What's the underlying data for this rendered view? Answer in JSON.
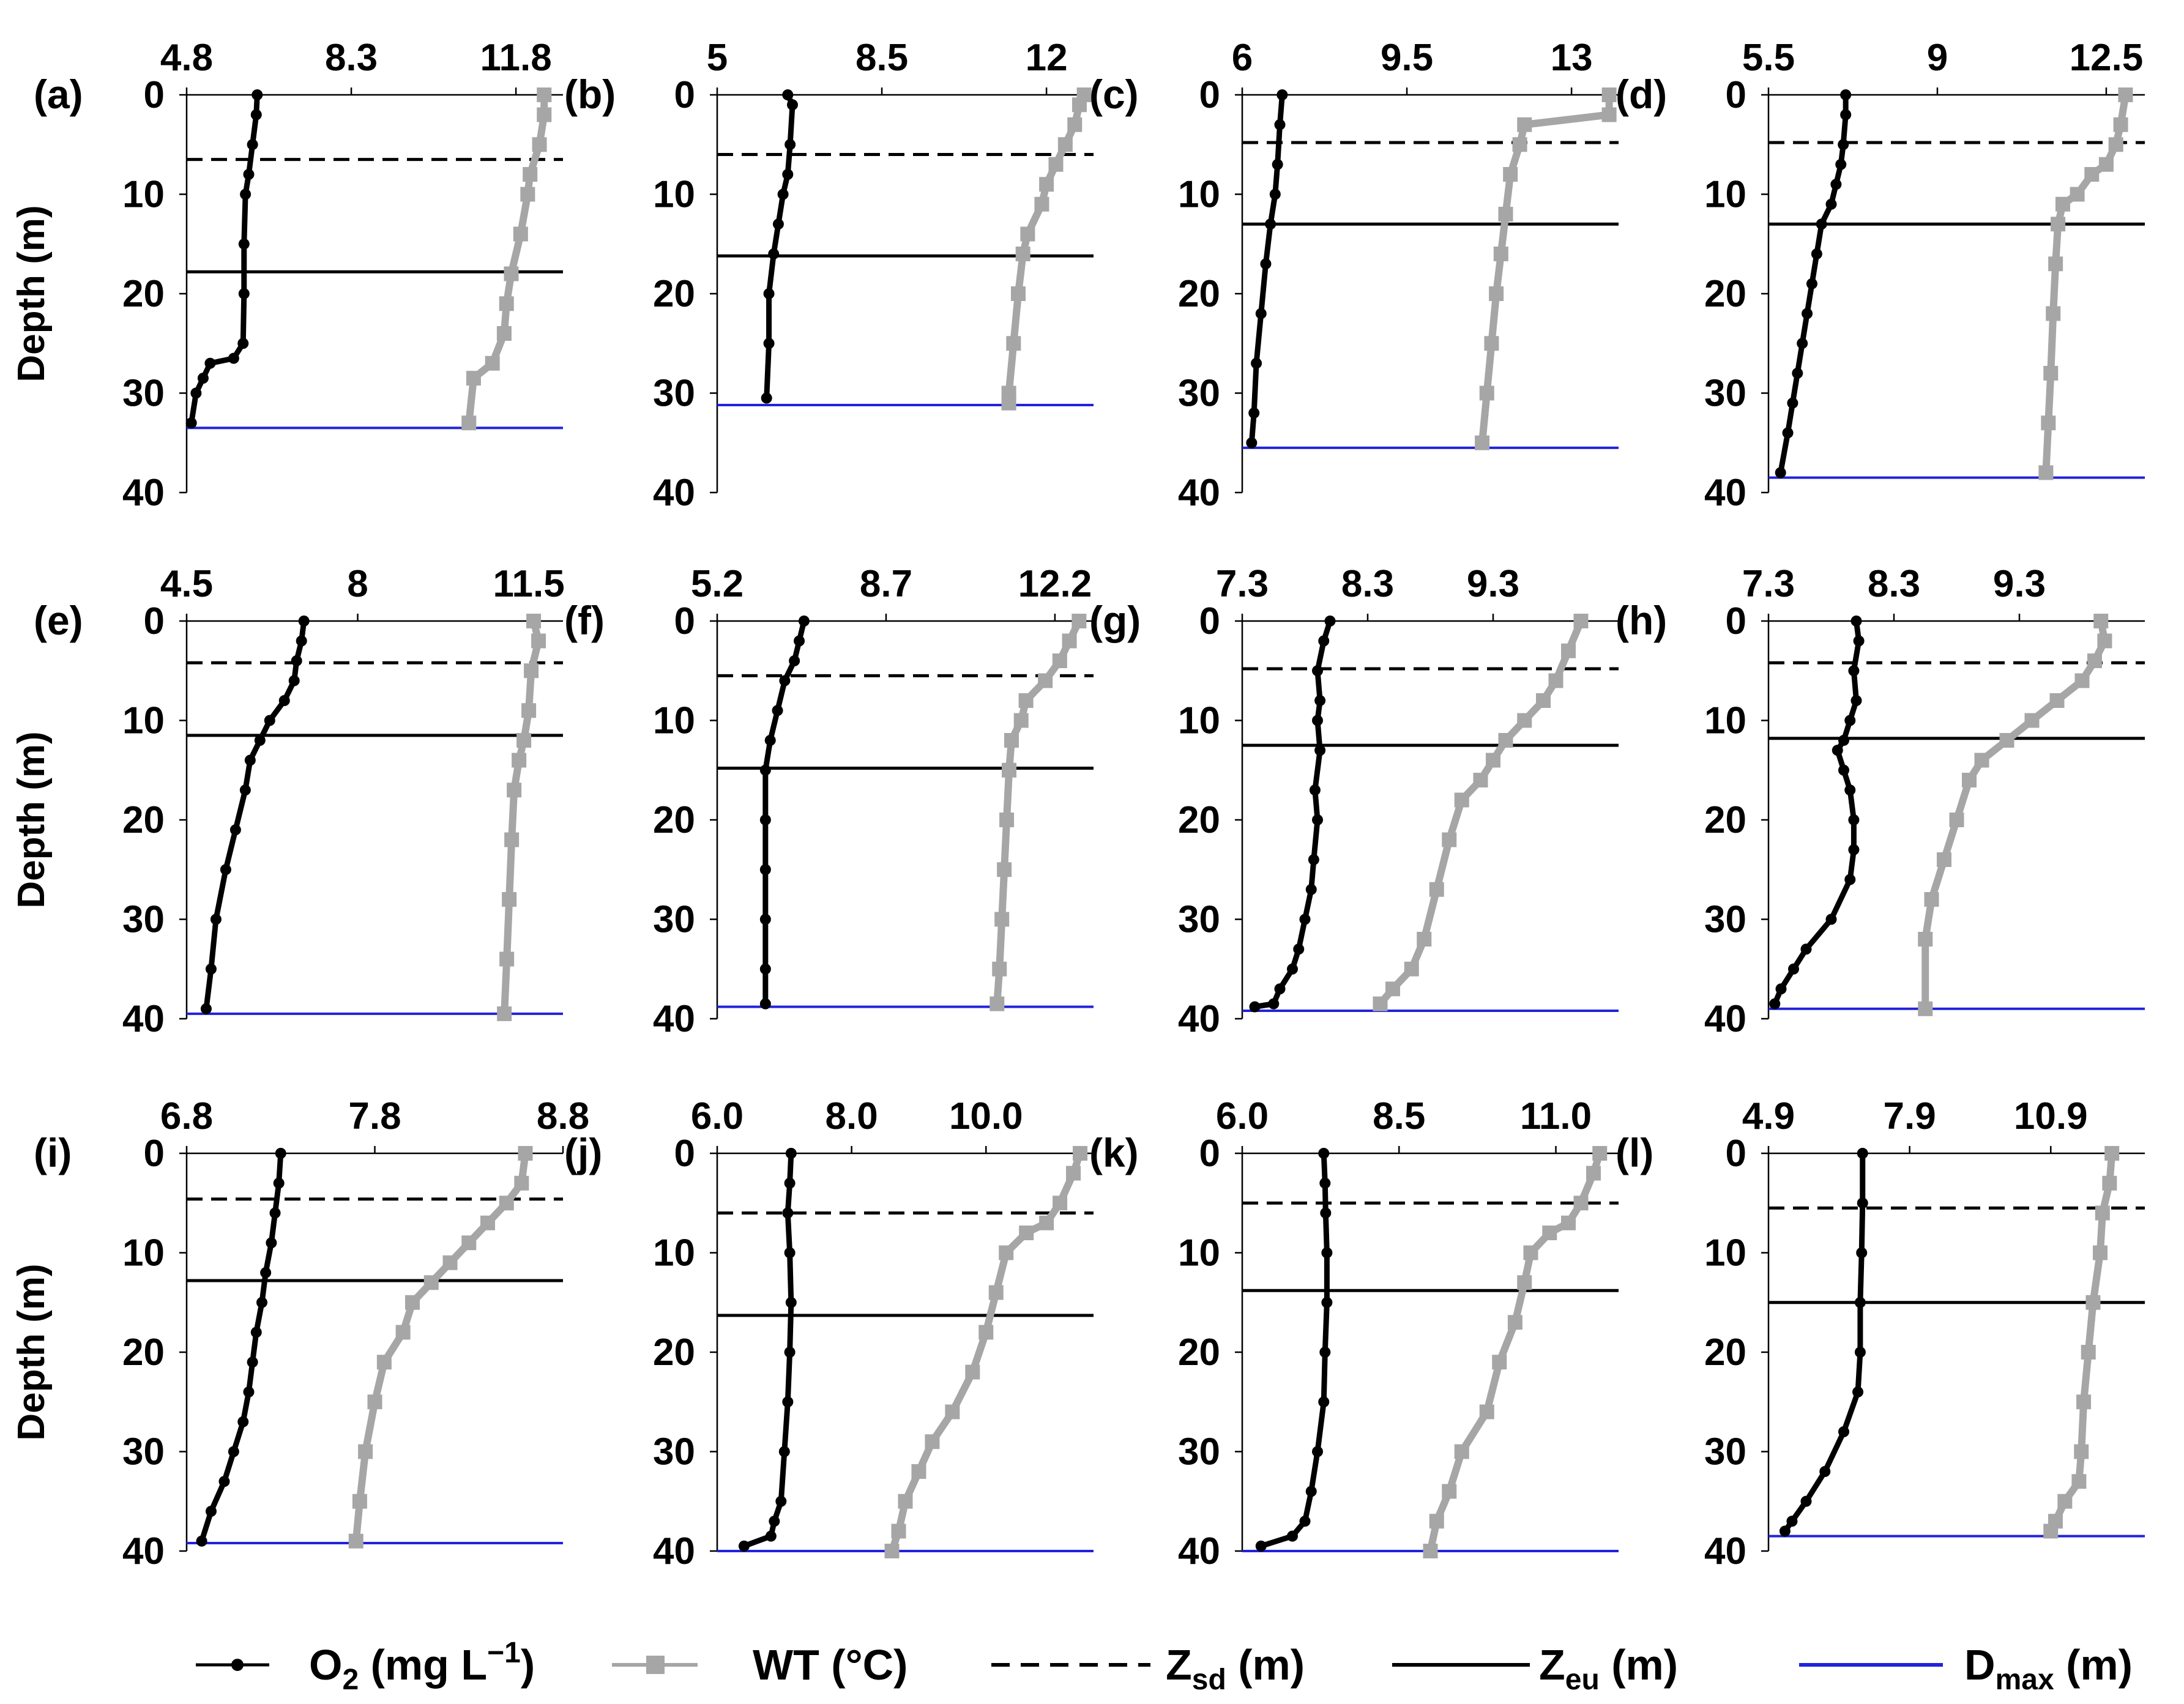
{
  "legend": {
    "o2": {
      "main": "O",
      "sub": "2",
      "rest": " (mg L",
      "sup": "−1",
      "end": ")"
    },
    "wt": {
      "label": "WT (°C)"
    },
    "zsd": {
      "main": "Z",
      "sub": "sd",
      "rest": " (m)"
    },
    "zeu": {
      "main": "Z",
      "sub": "eu",
      "rest": " (m)"
    },
    "dmax": {
      "main": "D",
      "sub": "max",
      "rest": " (m)"
    }
  },
  "colors": {
    "o2": "#000000",
    "wt": "#a6a6a6",
    "zsd": "#000000",
    "zeu": "#000000",
    "dmax": "#2222dd"
  },
  "y_axis": {
    "label": "Depth (m)",
    "ticks": [
      0,
      10,
      20,
      30,
      40
    ],
    "range": [
      0,
      40
    ]
  },
  "chart_data": [
    {
      "type": "line",
      "panel": "(a)",
      "xticks": [
        "4.8",
        "8.3",
        "11.8"
      ],
      "xlim": [
        4.8,
        12.8
      ],
      "zsd": 6.5,
      "zeu": 17.8,
      "dmax": 33.5,
      "o2": [
        [
          6.3,
          0
        ],
        [
          6.28,
          2
        ],
        [
          6.2,
          5
        ],
        [
          6.12,
          8
        ],
        [
          6.05,
          10
        ],
        [
          6.02,
          15
        ],
        [
          6.02,
          20
        ],
        [
          6.0,
          25
        ],
        [
          5.8,
          26.5
        ],
        [
          5.3,
          27
        ],
        [
          5.15,
          28.5
        ],
        [
          5.0,
          30
        ],
        [
          4.9,
          33
        ]
      ],
      "wt": [
        [
          12.4,
          0
        ],
        [
          12.4,
          2
        ],
        [
          12.3,
          5
        ],
        [
          12.1,
          8
        ],
        [
          12.05,
          10
        ],
        [
          11.9,
          14
        ],
        [
          11.7,
          18
        ],
        [
          11.6,
          21
        ],
        [
          11.55,
          24
        ],
        [
          11.3,
          27
        ],
        [
          10.9,
          28.5
        ],
        [
          10.8,
          33
        ]
      ]
    },
    {
      "type": "line",
      "panel": "(b)",
      "xticks": [
        "5",
        "8.5",
        "12"
      ],
      "xlim": [
        5,
        13
      ],
      "zsd": 6.0,
      "zeu": 16.2,
      "dmax": 31.2,
      "o2": [
        [
          6.5,
          0
        ],
        [
          6.6,
          1
        ],
        [
          6.55,
          5
        ],
        [
          6.5,
          8
        ],
        [
          6.4,
          10
        ],
        [
          6.3,
          13
        ],
        [
          6.2,
          16
        ],
        [
          6.1,
          20
        ],
        [
          6.1,
          25
        ],
        [
          6.05,
          30.5
        ]
      ],
      "wt": [
        [
          12.8,
          0
        ],
        [
          12.7,
          1
        ],
        [
          12.6,
          3
        ],
        [
          12.4,
          5
        ],
        [
          12.2,
          7
        ],
        [
          12.0,
          9
        ],
        [
          11.9,
          11
        ],
        [
          11.6,
          14
        ],
        [
          11.5,
          16
        ],
        [
          11.4,
          20
        ],
        [
          11.3,
          25
        ],
        [
          11.2,
          30
        ],
        [
          11.2,
          31
        ]
      ]
    },
    {
      "type": "line",
      "panel": "(c)",
      "xticks": [
        "6",
        "9.5",
        "13"
      ],
      "xlim": [
        6,
        14
      ],
      "zsd": 4.8,
      "zeu": 13.0,
      "dmax": 35.5,
      "o2": [
        [
          6.85,
          0
        ],
        [
          6.8,
          3
        ],
        [
          6.75,
          7
        ],
        [
          6.7,
          10
        ],
        [
          6.6,
          13
        ],
        [
          6.5,
          17
        ],
        [
          6.4,
          22
        ],
        [
          6.3,
          27
        ],
        [
          6.25,
          32
        ],
        [
          6.2,
          35
        ]
      ],
      "wt": [
        [
          13.8,
          0
        ],
        [
          13.8,
          2
        ],
        [
          12.0,
          3
        ],
        [
          11.9,
          5
        ],
        [
          11.7,
          8
        ],
        [
          11.6,
          12
        ],
        [
          11.5,
          16
        ],
        [
          11.4,
          20
        ],
        [
          11.3,
          25
        ],
        [
          11.2,
          30
        ],
        [
          11.1,
          35
        ]
      ]
    },
    {
      "type": "line",
      "panel": "(d)",
      "xticks": [
        "5.5",
        "9",
        "12.5"
      ],
      "xlim": [
        5.5,
        13.3
      ],
      "zsd": 4.8,
      "zeu": 13.0,
      "dmax": 38.5,
      "o2": [
        [
          7.1,
          0
        ],
        [
          7.1,
          2
        ],
        [
          7.05,
          5
        ],
        [
          7.0,
          7
        ],
        [
          6.9,
          9
        ],
        [
          6.8,
          11
        ],
        [
          6.6,
          13
        ],
        [
          6.5,
          16
        ],
        [
          6.4,
          19
        ],
        [
          6.3,
          22
        ],
        [
          6.2,
          25
        ],
        [
          6.1,
          28
        ],
        [
          6.0,
          31
        ],
        [
          5.9,
          34
        ],
        [
          5.75,
          38
        ]
      ],
      "wt": [
        [
          12.9,
          0
        ],
        [
          12.8,
          3
        ],
        [
          12.7,
          5
        ],
        [
          12.5,
          7
        ],
        [
          12.2,
          8
        ],
        [
          11.9,
          10
        ],
        [
          11.6,
          11
        ],
        [
          11.5,
          13
        ],
        [
          11.45,
          17
        ],
        [
          11.4,
          22
        ],
        [
          11.35,
          28
        ],
        [
          11.3,
          33
        ],
        [
          11.25,
          38
        ]
      ]
    },
    {
      "type": "line",
      "panel": "(e)",
      "xticks": [
        "4.5",
        "8",
        "11.5"
      ],
      "xlim": [
        4.5,
        12.2
      ],
      "zsd": 4.2,
      "zeu": 11.5,
      "dmax": 39.5,
      "o2": [
        [
          6.9,
          0
        ],
        [
          6.85,
          2
        ],
        [
          6.75,
          4
        ],
        [
          6.7,
          6
        ],
        [
          6.5,
          8
        ],
        [
          6.2,
          10
        ],
        [
          6.0,
          12
        ],
        [
          5.8,
          14
        ],
        [
          5.7,
          17
        ],
        [
          5.5,
          21
        ],
        [
          5.3,
          25
        ],
        [
          5.1,
          30
        ],
        [
          5.0,
          35
        ],
        [
          4.9,
          39
        ]
      ],
      "wt": [
        [
          11.6,
          0
        ],
        [
          11.7,
          2
        ],
        [
          11.55,
          5
        ],
        [
          11.5,
          9
        ],
        [
          11.4,
          12
        ],
        [
          11.3,
          14
        ],
        [
          11.2,
          17
        ],
        [
          11.15,
          22
        ],
        [
          11.1,
          28
        ],
        [
          11.05,
          34
        ],
        [
          11.0,
          39.5
        ]
      ]
    },
    {
      "type": "line",
      "panel": "(f)",
      "xticks": [
        "5.2",
        "8.7",
        "12.2"
      ],
      "xlim": [
        5.2,
        13.0
      ],
      "zsd": 5.5,
      "zeu": 14.8,
      "dmax": 38.8,
      "o2": [
        [
          7.0,
          0
        ],
        [
          6.9,
          2
        ],
        [
          6.8,
          4
        ],
        [
          6.6,
          6
        ],
        [
          6.45,
          9
        ],
        [
          6.3,
          12
        ],
        [
          6.2,
          15
        ],
        [
          6.2,
          20
        ],
        [
          6.2,
          25
        ],
        [
          6.2,
          30
        ],
        [
          6.2,
          35
        ],
        [
          6.2,
          38.5
        ]
      ],
      "wt": [
        [
          12.7,
          0
        ],
        [
          12.5,
          2
        ],
        [
          12.3,
          4
        ],
        [
          12.0,
          6
        ],
        [
          11.6,
          8
        ],
        [
          11.5,
          10
        ],
        [
          11.3,
          12
        ],
        [
          11.25,
          15
        ],
        [
          11.2,
          20
        ],
        [
          11.15,
          25
        ],
        [
          11.1,
          30
        ],
        [
          11.05,
          35
        ],
        [
          11.0,
          38.5
        ]
      ]
    },
    {
      "type": "line",
      "panel": "(g)",
      "xticks": [
        "7.3",
        "8.3",
        "9.3"
      ],
      "xlim": [
        7.3,
        10.3
      ],
      "zsd": 4.8,
      "zeu": 12.5,
      "dmax": 39.2,
      "o2": [
        [
          8.0,
          0
        ],
        [
          7.95,
          2
        ],
        [
          7.9,
          5
        ],
        [
          7.92,
          8
        ],
        [
          7.9,
          10
        ],
        [
          7.92,
          13
        ],
        [
          7.88,
          17
        ],
        [
          7.9,
          20
        ],
        [
          7.87,
          24
        ],
        [
          7.85,
          27
        ],
        [
          7.8,
          30
        ],
        [
          7.75,
          33
        ],
        [
          7.7,
          35
        ],
        [
          7.6,
          37
        ],
        [
          7.55,
          38.5
        ],
        [
          7.4,
          38.8
        ]
      ],
      "wt": [
        [
          10.0,
          0
        ],
        [
          9.9,
          3
        ],
        [
          9.8,
          6
        ],
        [
          9.7,
          8
        ],
        [
          9.55,
          10
        ],
        [
          9.4,
          12
        ],
        [
          9.3,
          14
        ],
        [
          9.2,
          16
        ],
        [
          9.05,
          18
        ],
        [
          8.95,
          22
        ],
        [
          8.85,
          27
        ],
        [
          8.75,
          32
        ],
        [
          8.65,
          35
        ],
        [
          8.5,
          37
        ],
        [
          8.4,
          38.5
        ]
      ]
    },
    {
      "type": "line",
      "panel": "(h)",
      "xticks": [
        "7.3",
        "8.3",
        "9.3"
      ],
      "xlim": [
        7.3,
        10.3
      ],
      "zsd": 4.2,
      "zeu": 11.8,
      "dmax": 39.0,
      "o2": [
        [
          8.0,
          0
        ],
        [
          8.02,
          2
        ],
        [
          7.98,
          5
        ],
        [
          8.0,
          8
        ],
        [
          7.95,
          10
        ],
        [
          7.9,
          12
        ],
        [
          7.85,
          13
        ],
        [
          7.9,
          15
        ],
        [
          7.95,
          17
        ],
        [
          7.98,
          20
        ],
        [
          7.98,
          23
        ],
        [
          7.95,
          26
        ],
        [
          7.8,
          30
        ],
        [
          7.6,
          33
        ],
        [
          7.5,
          35
        ],
        [
          7.4,
          37
        ],
        [
          7.35,
          38.5
        ]
      ],
      "wt": [
        [
          9.95,
          0
        ],
        [
          9.98,
          2
        ],
        [
          9.9,
          4
        ],
        [
          9.8,
          6
        ],
        [
          9.6,
          8
        ],
        [
          9.4,
          10
        ],
        [
          9.2,
          12
        ],
        [
          9.0,
          14
        ],
        [
          8.9,
          16
        ],
        [
          8.8,
          20
        ],
        [
          8.7,
          24
        ],
        [
          8.6,
          28
        ],
        [
          8.55,
          32
        ],
        [
          8.55,
          39
        ]
      ]
    },
    {
      "type": "line",
      "panel": "(i)",
      "xticks": [
        "6.8",
        "7.8",
        "8.8"
      ],
      "xlim": [
        6.8,
        8.8
      ],
      "zsd": 4.6,
      "zeu": 12.8,
      "dmax": 39.2,
      "o2": [
        [
          7.3,
          0
        ],
        [
          7.29,
          3
        ],
        [
          7.27,
          6
        ],
        [
          7.25,
          9
        ],
        [
          7.22,
          12
        ],
        [
          7.2,
          15
        ],
        [
          7.17,
          18
        ],
        [
          7.15,
          21
        ],
        [
          7.13,
          24
        ],
        [
          7.1,
          27
        ],
        [
          7.05,
          30
        ],
        [
          7.0,
          33
        ],
        [
          6.93,
          36
        ],
        [
          6.88,
          39
        ]
      ],
      "wt": [
        [
          8.6,
          0
        ],
        [
          8.58,
          3
        ],
        [
          8.5,
          5
        ],
        [
          8.4,
          7
        ],
        [
          8.3,
          9
        ],
        [
          8.2,
          11
        ],
        [
          8.1,
          13
        ],
        [
          8.0,
          15
        ],
        [
          7.95,
          18
        ],
        [
          7.85,
          21
        ],
        [
          7.8,
          25
        ],
        [
          7.75,
          30
        ],
        [
          7.72,
          35
        ],
        [
          7.7,
          39
        ]
      ]
    },
    {
      "type": "line",
      "panel": "(j)",
      "xticks": [
        "6.0",
        "8.0",
        "10.0"
      ],
      "xlim": [
        6.0,
        11.6
      ],
      "zsd": 6.0,
      "zeu": 16.3,
      "dmax": 40.0,
      "o2": [
        [
          7.1,
          0
        ],
        [
          7.08,
          3
        ],
        [
          7.05,
          6
        ],
        [
          7.08,
          10
        ],
        [
          7.1,
          15
        ],
        [
          7.08,
          20
        ],
        [
          7.05,
          25
        ],
        [
          7.0,
          30
        ],
        [
          6.95,
          35
        ],
        [
          6.85,
          37
        ],
        [
          6.8,
          38.5
        ],
        [
          6.4,
          39.5
        ]
      ],
      "wt": [
        [
          11.4,
          0
        ],
        [
          11.3,
          2
        ],
        [
          11.1,
          5
        ],
        [
          10.9,
          7
        ],
        [
          10.6,
          8
        ],
        [
          10.3,
          10
        ],
        [
          10.15,
          14
        ],
        [
          10.0,
          18
        ],
        [
          9.8,
          22
        ],
        [
          9.5,
          26
        ],
        [
          9.2,
          29
        ],
        [
          9.0,
          32
        ],
        [
          8.8,
          35
        ],
        [
          8.7,
          38
        ],
        [
          8.6,
          40
        ]
      ]
    },
    {
      "type": "line",
      "panel": "(k)",
      "xticks": [
        "6.0",
        "8.5",
        "11.0"
      ],
      "xlim": [
        6.0,
        12.0
      ],
      "zsd": 5.0,
      "zeu": 13.8,
      "dmax": 40.0,
      "o2": [
        [
          7.3,
          0
        ],
        [
          7.32,
          3
        ],
        [
          7.33,
          6
        ],
        [
          7.35,
          10
        ],
        [
          7.35,
          15
        ],
        [
          7.32,
          20
        ],
        [
          7.3,
          25
        ],
        [
          7.2,
          30
        ],
        [
          7.1,
          34
        ],
        [
          7.0,
          37
        ],
        [
          6.8,
          38.5
        ],
        [
          6.3,
          39.5
        ]
      ],
      "wt": [
        [
          11.7,
          0
        ],
        [
          11.6,
          2
        ],
        [
          11.4,
          5
        ],
        [
          11.2,
          7
        ],
        [
          10.9,
          8
        ],
        [
          10.6,
          10
        ],
        [
          10.5,
          13
        ],
        [
          10.35,
          17
        ],
        [
          10.1,
          21
        ],
        [
          9.9,
          26
        ],
        [
          9.5,
          30
        ],
        [
          9.3,
          34
        ],
        [
          9.1,
          37
        ],
        [
          9.0,
          40
        ]
      ]
    },
    {
      "type": "line",
      "panel": "(l)",
      "xticks": [
        "4.9",
        "7.9",
        "10.9"
      ],
      "xlim": [
        4.9,
        12.9
      ],
      "zsd": 5.5,
      "zeu": 15.0,
      "dmax": 38.5,
      "o2": [
        [
          6.9,
          0
        ],
        [
          6.9,
          5
        ],
        [
          6.88,
          10
        ],
        [
          6.85,
          15
        ],
        [
          6.85,
          20
        ],
        [
          6.8,
          24
        ],
        [
          6.5,
          28
        ],
        [
          6.1,
          32
        ],
        [
          5.7,
          35
        ],
        [
          5.4,
          37
        ],
        [
          5.25,
          38
        ]
      ],
      "wt": [
        [
          12.2,
          0
        ],
        [
          12.15,
          3
        ],
        [
          12.0,
          6
        ],
        [
          11.95,
          10
        ],
        [
          11.8,
          15
        ],
        [
          11.7,
          20
        ],
        [
          11.6,
          25
        ],
        [
          11.55,
          30
        ],
        [
          11.5,
          33
        ],
        [
          11.2,
          35
        ],
        [
          11.0,
          37
        ],
        [
          10.9,
          38
        ]
      ]
    }
  ]
}
